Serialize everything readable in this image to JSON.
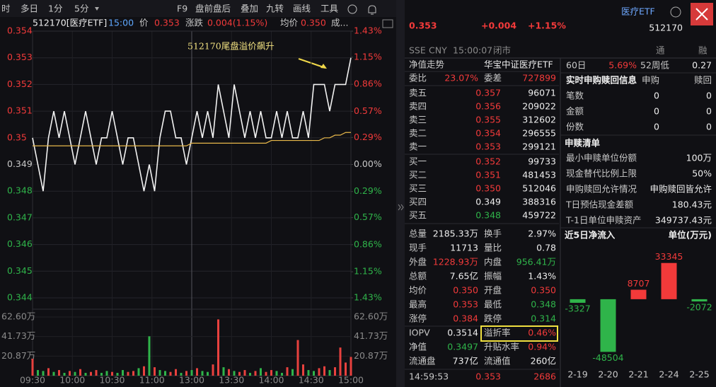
{
  "toolbar": {
    "left": [
      "时",
      "多日",
      "1分",
      "5分"
    ],
    "right": [
      "F9",
      "盘前盘后",
      "叠加",
      "九转",
      "画线",
      "工具"
    ]
  },
  "chart_data": [
    {
      "type": "line",
      "title": "512170[医疗ETF]",
      "time": "15:00",
      "last": "0.353",
      "change_label": "涨跌",
      "change": "0.004(1.15%)",
      "avg_last": "0.350",
      "more": "成...",
      "annotation": "512170尾盘溢价飙升",
      "xticks": [
        "09:30",
        "10:00",
        "10:30",
        "11:00",
        "13:00",
        "13:30",
        "14:00",
        "14:30",
        "15:00"
      ],
      "ylim": [
        0.344,
        0.354
      ],
      "yticks": [
        0.354,
        0.353,
        0.352,
        0.351,
        0.35,
        0.349,
        0.348,
        0.347,
        0.346,
        0.345,
        0.344
      ],
      "y2lim": [
        -1.43,
        1.43
      ],
      "y2ticks": [
        {
          "value": 1.43,
          "label": "1.43%"
        },
        {
          "value": 1.15,
          "label": "1.15%"
        },
        {
          "value": 0.86,
          "label": "0.86%"
        },
        {
          "value": 0.57,
          "label": "0.57%"
        },
        {
          "value": 0.29,
          "label": "0.29%"
        },
        {
          "value": 0,
          "label": "0.00%"
        },
        {
          "value": -0.29,
          "label": "0.29%"
        },
        {
          "value": -0.57,
          "label": "0.57%"
        },
        {
          "value": -0.86,
          "label": "0.86%"
        },
        {
          "value": -1.15,
          "label": "1.15%"
        },
        {
          "value": -1.43,
          "label": "1.43%"
        }
      ],
      "series": [
        {
          "name": "价",
          "color": "#f2f2f2",
          "values": [
            0.35,
            0.349,
            0.348,
            0.35,
            0.351,
            0.35,
            0.351,
            0.35,
            0.349,
            0.35,
            0.351,
            0.35,
            0.349,
            0.35,
            0.35,
            0.351,
            0.35,
            0.349,
            0.35,
            0.35,
            0.349,
            0.348,
            0.349,
            0.348,
            0.35,
            0.351,
            0.351,
            0.35,
            0.35,
            0.349,
            0.35,
            0.351,
            0.35,
            0.351,
            0.35,
            0.352,
            0.351,
            0.35,
            0.352,
            0.351,
            0.35,
            0.351,
            0.35,
            0.351,
            0.35,
            0.35,
            0.351,
            0.35,
            0.351,
            0.35,
            0.35,
            0.351,
            0.35,
            0.352,
            0.352,
            0.352,
            0.351,
            0.352,
            0.352,
            0.352,
            0.353
          ]
        },
        {
          "name": "均价",
          "color": "#e8b84a",
          "values": [
            0.3497,
            0.3497,
            0.3497,
            0.3497,
            0.3497,
            0.3497,
            0.3497,
            0.3497,
            0.3497,
            0.3497,
            0.3497,
            0.3497,
            0.3497,
            0.3497,
            0.3497,
            0.3497,
            0.3497,
            0.3497,
            0.3497,
            0.3497,
            0.3497,
            0.3497,
            0.3497,
            0.3497,
            0.3497,
            0.3497,
            0.3497,
            0.3497,
            0.3497,
            0.3497,
            0.3498,
            0.3498,
            0.3498,
            0.3498,
            0.3498,
            0.3498,
            0.3498,
            0.3498,
            0.3498,
            0.3498,
            0.3498,
            0.3498,
            0.3498,
            0.3498,
            0.3498,
            0.3499,
            0.3499,
            0.3499,
            0.3499,
            0.3499,
            0.3499,
            0.3499,
            0.3499,
            0.3499,
            0.3499,
            0.35,
            0.35,
            0.3501,
            0.3501,
            0.3502,
            0.3502
          ]
        }
      ]
    },
    {
      "type": "bar",
      "ylim": [
        0,
        62.6
      ],
      "yticks": [
        {
          "value": 62.6,
          "label": "62.60万"
        },
        {
          "value": 41.73,
          "label": "41.73万"
        },
        {
          "value": 20.87,
          "label": "20.87万"
        }
      ],
      "values": [
        18,
        6,
        5,
        8,
        4,
        6,
        3,
        5,
        4,
        7,
        3,
        4,
        6,
        3,
        5,
        4,
        3,
        6,
        4,
        5,
        8,
        10,
        42,
        9,
        6,
        5,
        4,
        7,
        3,
        5,
        6,
        8,
        5,
        4,
        12,
        60,
        9,
        7,
        5,
        4,
        6,
        3,
        5,
        8,
        4,
        6,
        5,
        3,
        9,
        7,
        38,
        12,
        6,
        5,
        8,
        10,
        6,
        9,
        30,
        14,
        20
      ],
      "colors": [
        "#e8413e",
        "#2fb44a",
        "#2fb44a",
        "#e8413e",
        "#2fb44a",
        "#e8413e",
        "#2fb44a",
        "#e8413e",
        "#2fb44a",
        "#e8413e",
        "#2fb44a",
        "#e8413e",
        "#e8413e",
        "#2fb44a",
        "#2fb44a",
        "#e8413e",
        "#2fb44a",
        "#2fb44a",
        "#e8413e",
        "#e8413e",
        "#2fb44a",
        "#e8413e",
        "#2fb44a",
        "#e8413e",
        "#2fb44a",
        "#2fb44a",
        "#e8413e",
        "#e8413e",
        "#2fb44a",
        "#e8413e",
        "#2fb44a",
        "#e8413e",
        "#2fb44a",
        "#2fb44a",
        "#e8413e",
        "#e8413e",
        "#2fb44a",
        "#e8413e",
        "#2fb44a",
        "#e8413e",
        "#e8413e",
        "#2fb44a",
        "#e8413e",
        "#2fb44a",
        "#e8413e",
        "#e8413e",
        "#2fb44a",
        "#2fb44a",
        "#e8413e",
        "#2fb44a",
        "#e8413e",
        "#e8413e",
        "#2fb44a",
        "#2fb44a",
        "#e8413e",
        "#e8413e",
        "#2fb44a",
        "#e8413e",
        "#e8413e",
        "#e8413e",
        "#e8413e"
      ]
    },
    {
      "type": "bar",
      "title": "近5日净流入",
      "unit": "单位(万元)",
      "categories": [
        "2-19",
        "2-20",
        "2-21",
        "2-24",
        "2-25"
      ],
      "values": [
        -3327,
        -48504,
        8707,
        33345,
        -2072
      ],
      "ylim": [
        -60000,
        54000
      ],
      "colors": {
        "up": "#f23a3a",
        "down": "#2fb44a"
      }
    }
  ],
  "quote": {
    "price": "0.353",
    "change": "+0.004",
    "pct": "+1.15%",
    "name": "医疗ETF",
    "code": "512170",
    "meta": [
      "SSE",
      "CNY",
      "15:00:07",
      "闭市"
    ],
    "flags": [
      "通",
      "融"
    ]
  },
  "order_book": {
    "title": "净值走势",
    "fund": "华宝中证医疗ETF",
    "ratio_label": "委比",
    "ratio": "23.07%",
    "diff_label": "委差",
    "diff": "727899",
    "asks": [
      [
        "卖五",
        "0.357",
        "96071",
        "#f23a3a"
      ],
      [
        "卖四",
        "0.356",
        "209022",
        "#f23a3a"
      ],
      [
        "卖三",
        "0.355",
        "312602",
        "#f23a3a"
      ],
      [
        "卖二",
        "0.354",
        "296555",
        "#f23a3a"
      ],
      [
        "卖一",
        "0.353",
        "299121",
        "#f23a3a"
      ]
    ],
    "bids": [
      [
        "买一",
        "0.352",
        "99733",
        "#f23a3a"
      ],
      [
        "买二",
        "0.351",
        "481453",
        "#f23a3a"
      ],
      [
        "买三",
        "0.350",
        "512046",
        "#f23a3a"
      ],
      [
        "买四",
        "0.349",
        "388316",
        "#eeeeee"
      ],
      [
        "买五",
        "0.348",
        "459722",
        "#2fb44a"
      ]
    ]
  },
  "stats": [
    [
      {
        "label": "总量",
        "value": "2185.33万"
      },
      {
        "label": "换手",
        "value": "2.97%"
      }
    ],
    [
      {
        "label": "现手",
        "value": "11713"
      },
      {
        "label": "量比",
        "value": "0.78"
      }
    ],
    [
      {
        "label": "外盘",
        "value": "1228.93万",
        "color": "#f23a3a"
      },
      {
        "label": "内盘",
        "value": "956.41万",
        "color": "#2fb44a"
      }
    ],
    [
      {
        "label": "总额",
        "value": "7.65亿"
      },
      {
        "label": "振幅",
        "value": "1.43%"
      }
    ],
    [
      {
        "label": "均价",
        "value": "0.350",
        "color": "#f23a3a"
      },
      {
        "label": "开盘",
        "value": "0.350",
        "color": "#f23a3a"
      }
    ],
    [
      {
        "label": "最高",
        "value": "0.353",
        "color": "#f23a3a"
      },
      {
        "label": "最低",
        "value": "0.348",
        "color": "#2fb44a"
      }
    ],
    [
      {
        "label": "涨停",
        "value": "0.384",
        "color": "#f23a3a"
      },
      {
        "label": "跌停",
        "value": "0.314",
        "color": "#2fb44a"
      }
    ],
    [
      {
        "label": "IOPV",
        "value": "0.3514"
      },
      {
        "label": "溢折率",
        "value": "0.46%",
        "color": "#f23a3a",
        "highlight": true
      }
    ],
    [
      {
        "label": "净值",
        "value": "0.3497",
        "color": "#2fb44a"
      },
      {
        "label": "升贴水率",
        "value": "0.94%",
        "color": "#f23a3a"
      }
    ],
    [
      {
        "label": "流通盘",
        "value": "737亿"
      },
      {
        "label": "流通值",
        "value": "260亿"
      }
    ]
  ],
  "last_trade": [
    "14:59:53",
    "0.353",
    "2686"
  ],
  "side": {
    "range": [
      "60日",
      "5.69%",
      "52周低",
      "0.27"
    ],
    "realtime": {
      "title": "实时申购赎回信息",
      "cols": [
        "申购",
        "赎回"
      ],
      "rows": [
        [
          "笔数",
          "0",
          "0"
        ],
        [
          "金额",
          "0",
          "0"
        ],
        [
          "份数",
          "0",
          "0"
        ]
      ]
    },
    "list": {
      "title": "申赎清单",
      "rows": [
        [
          "最小申赎单位份额",
          "100万"
        ],
        [
          "现金替代比例上限",
          "50%"
        ],
        [
          "申购赎回允许情况",
          "申购赎回皆允许"
        ],
        [
          "T日预估现金差额",
          "180.43元"
        ],
        [
          "T-1日单位申赎资产",
          "349737.43元"
        ]
      ]
    }
  }
}
